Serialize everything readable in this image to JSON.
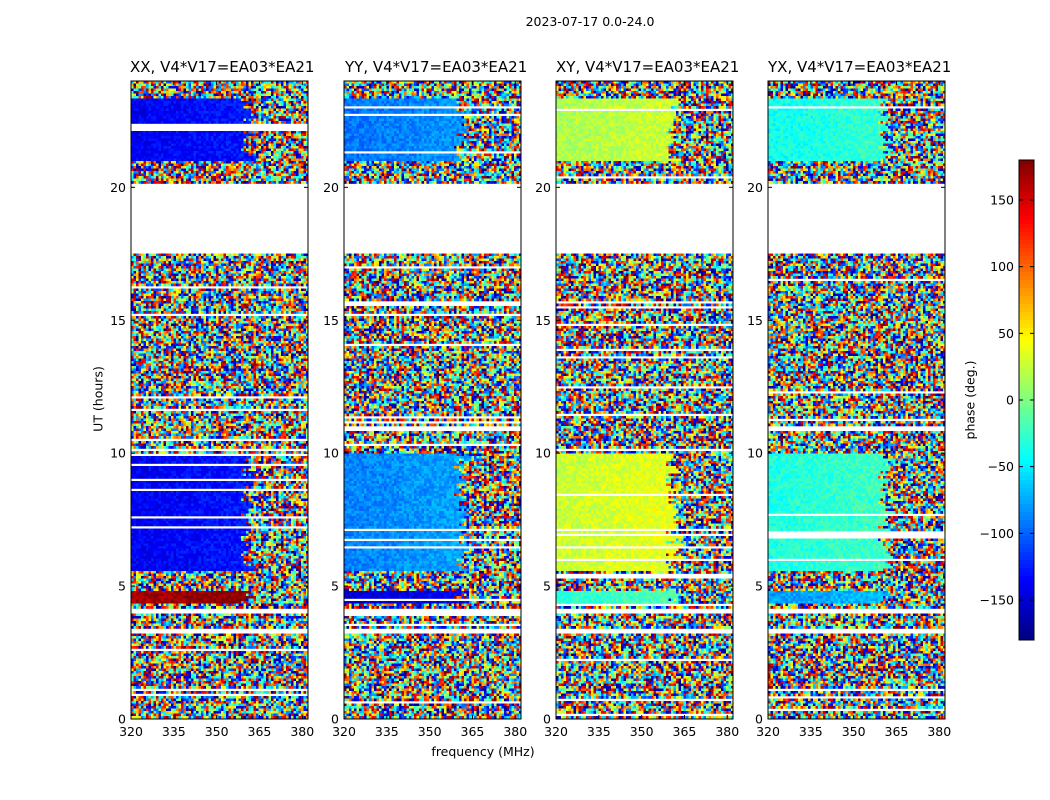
{
  "chart_data": {
    "type": "heatmap",
    "title": "2023-07-17 0.0-24.0",
    "xlabel": "frequency (MHz)",
    "ylabel": "UT (hours)",
    "xlim": [
      320,
      382
    ],
    "ylim": [
      0,
      24
    ],
    "x_ticks": [
      320,
      335,
      350,
      365,
      380
    ],
    "y_ticks": [
      0,
      5,
      10,
      15,
      20
    ],
    "panels": [
      {
        "label": "XX, V4*V17=EA03*EA21",
        "product": "XX"
      },
      {
        "label": "YY, V4*V17=EA03*EA21",
        "product": "YY"
      },
      {
        "label": "XY, V4*V17=EA03*EA21",
        "product": "XY"
      },
      {
        "label": "YX, V4*V17=EA03*EA21",
        "product": "YX"
      }
    ],
    "colorbar": {
      "label": "phase (deg.)",
      "range": [
        -180,
        180
      ],
      "ticks": [
        150,
        100,
        50,
        0,
        -50,
        -100,
        -150
      ],
      "tick_labels": [
        "150",
        "100",
        "50",
        "0",
        "−50",
        "−100",
        "−150"
      ],
      "colormap": "jet"
    },
    "blank_ut_ranges": [
      [
        17.5,
        20.1
      ],
      [
        4.0,
        4.2
      ],
      [
        3.25,
        3.4
      ]
    ],
    "coherent_ut_ranges": [
      {
        "ut": [
          21.0,
          23.3
        ],
        "mean_phase": {
          "XX": -140,
          "YY": -95,
          "XY": 15,
          "YX": -40
        }
      },
      {
        "ut": [
          5.6,
          9.95
        ],
        "mean_phase": {
          "XX": -140,
          "YY": -90,
          "XY": 25,
          "YX": -35
        }
      },
      {
        "ut": [
          4.3,
          4.8
        ],
        "mean_phase": {
          "XX": 165,
          "YY": -150,
          "XY": -30,
          "YX": -80
        }
      }
    ]
  }
}
